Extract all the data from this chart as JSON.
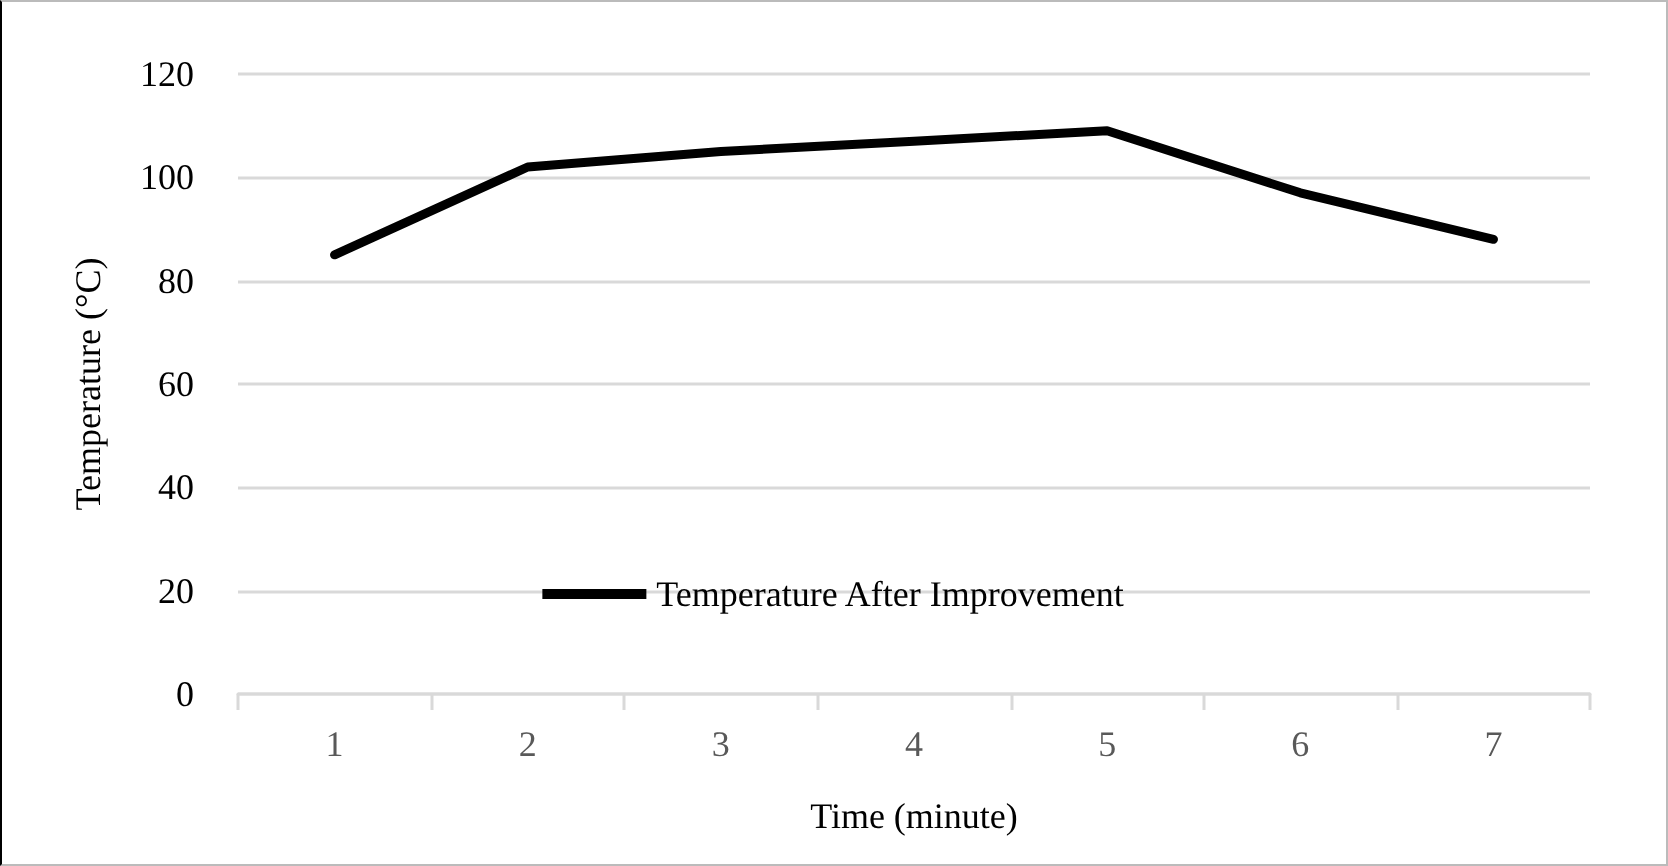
{
  "chart_data": {
    "type": "line",
    "xlabel": "Time (minute)",
    "ylabel": "Temperature (°C)",
    "categories": [
      "1",
      "2",
      "3",
      "4",
      "5",
      "6",
      "7"
    ],
    "series": [
      {
        "name": "Temperature After Improvement",
        "color": "#000000",
        "values": [
          85,
          102,
          105,
          107,
          109,
          97,
          88
        ]
      }
    ],
    "ylim": [
      0,
      120
    ],
    "yticks": [
      0,
      20,
      40,
      60,
      80,
      100,
      120
    ],
    "grid": "y",
    "legend": "bottom",
    "marker": "none",
    "line_style": "solid"
  }
}
